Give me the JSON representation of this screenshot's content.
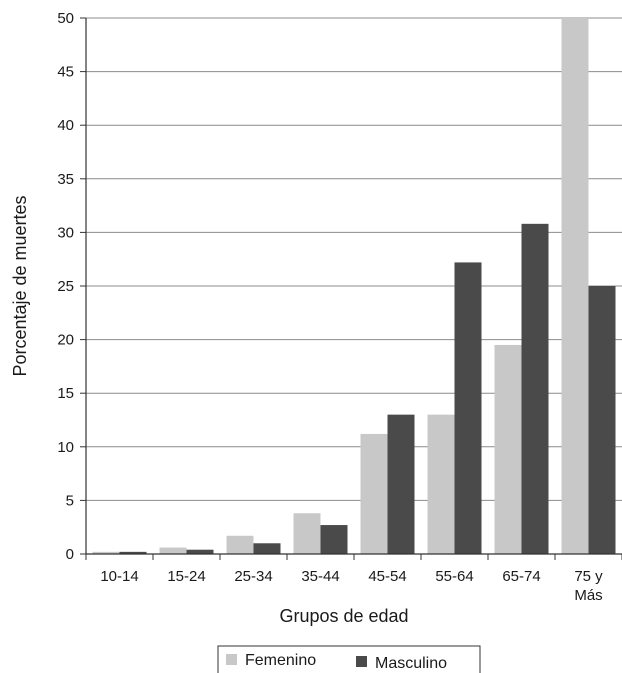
{
  "chart_data": {
    "type": "bar",
    "title": "",
    "xlabel": "Grupos de edad",
    "ylabel": "Porcentaje de muertes",
    "categories": [
      "10-14",
      "15-24",
      "25-34",
      "35-44",
      "45-54",
      "55-64",
      "65-74",
      "75 y Más"
    ],
    "category_lines": [
      [
        "10-14"
      ],
      [
        "15-24"
      ],
      [
        "25-34"
      ],
      [
        "35-44"
      ],
      [
        "45-54"
      ],
      [
        "55-64"
      ],
      [
        "65-74"
      ],
      [
        "75 y",
        "Más"
      ]
    ],
    "series": [
      {
        "name": "Femenino",
        "color": "#c8c8c8",
        "values": [
          0.2,
          0.6,
          1.7,
          3.8,
          11.2,
          13.0,
          19.5,
          50.0
        ]
      },
      {
        "name": "Masculino",
        "color": "#4a4a4a",
        "values": [
          0.2,
          0.4,
          1.0,
          2.7,
          13.0,
          27.2,
          30.8,
          25.0
        ]
      }
    ],
    "ylim": [
      0,
      50
    ],
    "yticks": [
      0,
      5,
      10,
      15,
      20,
      25,
      30,
      35,
      40,
      45,
      50
    ],
    "grid": true,
    "legend_position": "bottom"
  }
}
